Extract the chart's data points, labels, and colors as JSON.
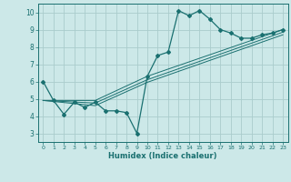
{
  "main_x": [
    0,
    1,
    2,
    3,
    4,
    5,
    6,
    7,
    8,
    9,
    10,
    11,
    12,
    13,
    14,
    15,
    16,
    17,
    18,
    19,
    20,
    21,
    22,
    23
  ],
  "main_y": [
    6.0,
    4.9,
    4.1,
    4.8,
    4.5,
    4.8,
    4.3,
    4.3,
    4.2,
    3.0,
    6.3,
    7.5,
    7.7,
    10.1,
    9.8,
    10.1,
    9.6,
    9.0,
    8.8,
    8.5,
    8.5,
    8.7,
    8.8,
    9.0
  ],
  "line2_x": [
    0,
    5,
    10,
    23
  ],
  "line2_y": [
    4.9,
    4.9,
    6.3,
    9.0
  ],
  "line3_x": [
    0,
    5,
    10,
    23
  ],
  "line3_y": [
    4.9,
    4.75,
    6.1,
    8.85
  ],
  "line4_x": [
    0,
    5,
    10,
    23
  ],
  "line4_y": [
    4.9,
    4.6,
    5.95,
    8.7
  ],
  "bg_color": "#cce8e8",
  "line_color": "#1a7070",
  "grid_color": "#aacccc",
  "xlabel": "Humidex (Indice chaleur)",
  "ylim": [
    2.5,
    10.5
  ],
  "xlim": [
    -0.5,
    23.5
  ],
  "yticks": [
    3,
    4,
    5,
    6,
    7,
    8,
    9,
    10
  ],
  "xticks": [
    0,
    1,
    2,
    3,
    4,
    5,
    6,
    7,
    8,
    9,
    10,
    11,
    12,
    13,
    14,
    15,
    16,
    17,
    18,
    19,
    20,
    21,
    22,
    23
  ]
}
